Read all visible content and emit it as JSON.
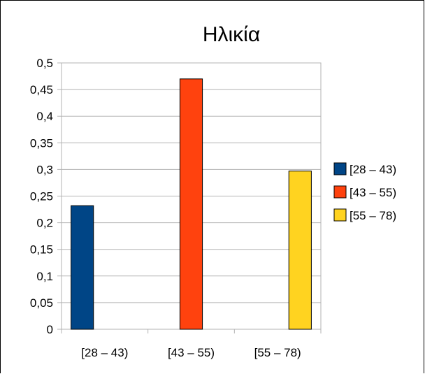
{
  "chart_data": {
    "type": "bar",
    "title": "Ηλικία",
    "xlabel": "",
    "ylabel": "",
    "categories": [
      "[28 – 43)",
      "[43 – 55)",
      "[55 – 78)"
    ],
    "series": [
      {
        "name": "[28 – 43)",
        "color": "#004586",
        "values": [
          0.232,
          0,
          0
        ]
      },
      {
        "name": "[43 – 55)",
        "color": "#ff420e",
        "values": [
          0,
          0.47,
          0
        ]
      },
      {
        "name": "[55 – 78)",
        "color": "#ffd320",
        "values": [
          0,
          0,
          0.297
        ]
      }
    ],
    "ylim": [
      0,
      0.5
    ],
    "yticks": [
      "0",
      "0,05",
      "0,1",
      "0,15",
      "0,2",
      "0,25",
      "0,3",
      "0,35",
      "0,4",
      "0,45",
      "0,5"
    ],
    "ytick_values": [
      0,
      0.05,
      0.1,
      0.15,
      0.2,
      0.25,
      0.3,
      0.35,
      0.4,
      0.45,
      0.5
    ],
    "grid": true,
    "legend_position": "right"
  }
}
